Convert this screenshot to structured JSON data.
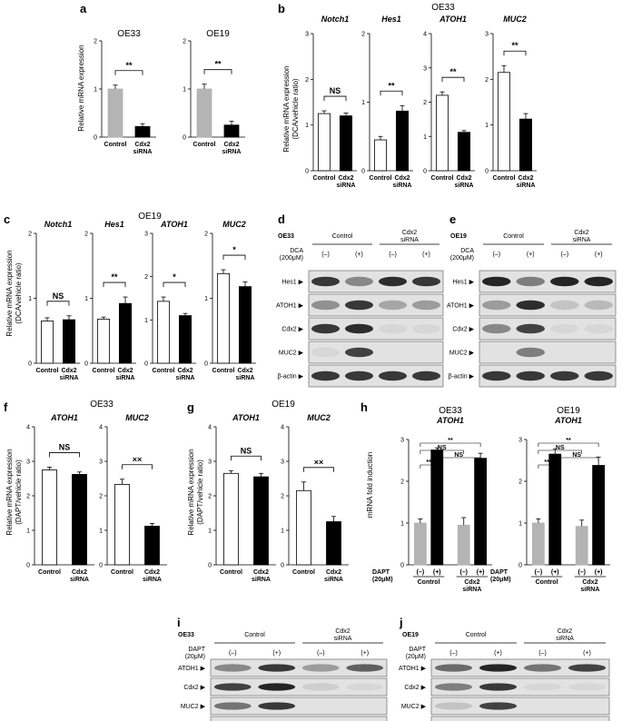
{
  "figure": {
    "panel_letters": [
      "a",
      "b",
      "c",
      "d",
      "e",
      "f",
      "g",
      "h",
      "i",
      "j"
    ],
    "y_labels": {
      "a": [
        "Relative mRNA expression"
      ],
      "b": [
        "Relative mRNA expression",
        "(DCA/vehicle ratio)"
      ],
      "c": [
        "Relative mRNA expression",
        "(DCA/vehicle ratio)"
      ],
      "f": [
        "Relative mRNA expression",
        "(DAPT/vehicle ratio)"
      ],
      "g": [
        "Relative mRNA expression",
        "(DAPT/vehicle ratio)"
      ],
      "h": [
        "mRNA fold induction"
      ]
    },
    "group_titles": {
      "b": "OE33",
      "c": "OE19",
      "f": "OE33",
      "g": "OE19"
    },
    "categories": [
      "Control",
      "Cdx2",
      "siRNA"
    ],
    "dapt_row": {
      "label": [
        "DAPT",
        "(20μM)"
      ],
      "marks": [
        "(–)",
        "(+)",
        "(–)",
        "(+)"
      ],
      "groups": [
        "Control",
        "Cdx2",
        "siRNA"
      ]
    },
    "colors": {
      "control_grey": "#b4b4b4",
      "open": "#ffffff",
      "sirna_black": "#000000",
      "blot_band": "#1a1a1a",
      "blot_bg": "#e2e2e2"
    }
  },
  "chart_data": [
    {
      "id": "a1",
      "panel": "a",
      "type": "bar",
      "title": "OE33",
      "categories": [
        "Control",
        "Cdx2 siRNA"
      ],
      "values": [
        1.0,
        0.22
      ],
      "errors": [
        0.08,
        0.06
      ],
      "ylim": [
        0,
        2
      ],
      "yticks": [
        "0",
        "1",
        "2"
      ],
      "significance": "**",
      "fill": [
        "#b4b4b4",
        "#000000"
      ]
    },
    {
      "id": "a2",
      "panel": "a",
      "type": "bar",
      "title": "OE19",
      "categories": [
        "Control",
        "Cdx2 siRNA"
      ],
      "values": [
        1.0,
        0.25
      ],
      "errors": [
        0.1,
        0.08
      ],
      "ylim": [
        0,
        2
      ],
      "yticks": [
        "0",
        "1",
        "2"
      ],
      "significance": "**",
      "fill": [
        "#b4b4b4",
        "#000000"
      ]
    },
    {
      "id": "b1",
      "panel": "b",
      "type": "bar",
      "title": "Notch1",
      "categories": [
        "Control",
        "Cdx2 siRNA"
      ],
      "values": [
        1.25,
        1.2
      ],
      "errors": [
        0.06,
        0.06
      ],
      "ylim": [
        0,
        3
      ],
      "yticks": [
        "0",
        "1",
        "2",
        "3"
      ],
      "significance": "NS",
      "fill": [
        "#ffffff",
        "#000000"
      ]
    },
    {
      "id": "b2",
      "panel": "b",
      "type": "bar",
      "title": "Hes1",
      "categories": [
        "Control",
        "Cdx2 siRNA"
      ],
      "values": [
        0.45,
        0.87
      ],
      "errors": [
        0.05,
        0.08
      ],
      "ylim": [
        0,
        2
      ],
      "yticks": [
        "0",
        "1",
        "2"
      ],
      "significance": "**",
      "fill": [
        "#ffffff",
        "#000000"
      ]
    },
    {
      "id": "b3",
      "panel": "b",
      "type": "bar",
      "title": "ATOH1",
      "categories": [
        "Control",
        "Cdx2 siRNA"
      ],
      "values": [
        2.2,
        1.12
      ],
      "errors": [
        0.1,
        0.05
      ],
      "ylim": [
        0,
        4
      ],
      "yticks": [
        "0",
        "1",
        "2",
        "3",
        "4"
      ],
      "significance": "**",
      "fill": [
        "#ffffff",
        "#000000"
      ]
    },
    {
      "id": "b4",
      "panel": "b",
      "type": "bar",
      "title": "MUC2",
      "categories": [
        "Control",
        "Cdx2 siRNA"
      ],
      "values": [
        2.15,
        1.13
      ],
      "errors": [
        0.15,
        0.12
      ],
      "ylim": [
        0,
        3
      ],
      "yticks": [
        "0",
        "1",
        "2",
        "3"
      ],
      "significance": "**",
      "fill": [
        "#ffffff",
        "#000000"
      ]
    },
    {
      "id": "c1",
      "panel": "c",
      "type": "bar",
      "title": "Notch1",
      "categories": [
        "Control",
        "Cdx2 siRNA"
      ],
      "values": [
        0.65,
        0.67
      ],
      "errors": [
        0.05,
        0.06
      ],
      "ylim": [
        0,
        2
      ],
      "yticks": [
        "0",
        "1",
        "2"
      ],
      "significance": "NS",
      "fill": [
        "#ffffff",
        "#000000"
      ]
    },
    {
      "id": "c2",
      "panel": "c",
      "type": "bar",
      "title": "Hes1",
      "categories": [
        "Control",
        "Cdx2 siRNA"
      ],
      "values": [
        0.68,
        0.92
      ],
      "errors": [
        0.03,
        0.1
      ],
      "ylim": [
        0,
        2
      ],
      "yticks": [
        "0",
        "1",
        "2"
      ],
      "significance": "**",
      "fill": [
        "#ffffff",
        "#000000"
      ]
    },
    {
      "id": "c3",
      "panel": "c",
      "type": "bar",
      "title": "ATOH1",
      "categories": [
        "Control",
        "Cdx2 siRNA"
      ],
      "values": [
        1.43,
        1.1
      ],
      "errors": [
        0.1,
        0.05
      ],
      "ylim": [
        0,
        3
      ],
      "yticks": [
        "0",
        "1",
        "2",
        "3"
      ],
      "significance": "*",
      "fill": [
        "#ffffff",
        "#000000"
      ]
    },
    {
      "id": "c4",
      "panel": "c",
      "type": "bar",
      "title": "MUC2",
      "categories": [
        "Control",
        "Cdx2 siRNA"
      ],
      "values": [
        1.38,
        1.18
      ],
      "errors": [
        0.06,
        0.07
      ],
      "ylim": [
        0,
        2
      ],
      "yticks": [
        "0",
        "1",
        "2"
      ],
      "significance": "*",
      "fill": [
        "#ffffff",
        "#000000"
      ]
    },
    {
      "id": "f1",
      "panel": "f",
      "type": "bar",
      "title": "ATOH1",
      "categories": [
        "Control",
        "Cdx2 siRNA"
      ],
      "values": [
        2.75,
        2.62
      ],
      "errors": [
        0.08,
        0.07
      ],
      "ylim": [
        0,
        4
      ],
      "yticks": [
        "0",
        "1",
        "2",
        "3",
        "4"
      ],
      "significance": "NS",
      "fill": [
        "#ffffff",
        "#000000"
      ]
    },
    {
      "id": "f2",
      "panel": "f",
      "type": "bar",
      "title": "MUC2",
      "categories": [
        "Control",
        "Cdx2 siRNA"
      ],
      "values": [
        2.33,
        1.12
      ],
      "errors": [
        0.15,
        0.08
      ],
      "ylim": [
        0,
        4
      ],
      "yticks": [
        "0",
        "1",
        "2",
        "3",
        "4"
      ],
      "significance": "××",
      "fill": [
        "#ffffff",
        "#000000"
      ]
    },
    {
      "id": "g1",
      "panel": "g",
      "type": "bar",
      "title": "ATOH1",
      "categories": [
        "Control",
        "Cdx2 siRNA"
      ],
      "values": [
        2.65,
        2.55
      ],
      "errors": [
        0.08,
        0.1
      ],
      "ylim": [
        0,
        4
      ],
      "yticks": [
        "0",
        "1",
        "2",
        "3",
        "4"
      ],
      "significance": "NS",
      "fill": [
        "#ffffff",
        "#000000"
      ]
    },
    {
      "id": "g2",
      "panel": "g",
      "type": "bar",
      "title": "MUC2",
      "categories": [
        "Control",
        "Cdx2 siRNA"
      ],
      "values": [
        2.15,
        1.25
      ],
      "errors": [
        0.25,
        0.15
      ],
      "ylim": [
        0,
        4
      ],
      "yticks": [
        "0",
        "1",
        "2",
        "3",
        "4"
      ],
      "significance": "××",
      "fill": [
        "#ffffff",
        "#000000"
      ]
    },
    {
      "id": "h1",
      "panel": "h",
      "type": "bar",
      "title": "OE33",
      "subtitle": "ATOH1",
      "categories": [
        "Control (–)",
        "Control (+)",
        "Cdx2 siRNA (–)",
        "Cdx2 siRNA (+)"
      ],
      "values": [
        1.0,
        2.75,
        0.95,
        2.55
      ],
      "errors": [
        0.1,
        0.05,
        0.18,
        0.12
      ],
      "ylim": [
        0,
        3
      ],
      "yticks": [
        "0",
        "1",
        "2",
        "3"
      ],
      "significance": [
        "**",
        "NS",
        "NS",
        "**"
      ],
      "fill": [
        "#b4b4b4",
        "#000000",
        "#b4b4b4",
        "#000000"
      ]
    },
    {
      "id": "h2",
      "panel": "h",
      "type": "bar",
      "title": "OE19",
      "subtitle": "ATOH1",
      "categories": [
        "Control (–)",
        "Control (+)",
        "Cdx2 siRNA (–)",
        "Cdx2 siRNA (+)"
      ],
      "values": [
        1.0,
        2.65,
        0.92,
        2.38
      ],
      "errors": [
        0.1,
        0.12,
        0.15,
        0.2
      ],
      "ylim": [
        0,
        3
      ],
      "yticks": [
        "0",
        "1",
        "2",
        "3"
      ],
      "significance": [
        "**",
        "NS",
        "NS",
        "**"
      ],
      "fill": [
        "#b4b4b4",
        "#000000",
        "#b4b4b4",
        "#000000"
      ]
    }
  ],
  "blots": [
    {
      "id": "d",
      "cell": "OE33",
      "treatment": [
        "DCA",
        "(200μM)"
      ],
      "groups": [
        "Control",
        "Cdx2",
        "siRNA"
      ],
      "marks": [
        "(–)",
        "(+)",
        "(–)",
        "(+)"
      ],
      "rows": [
        {
          "label": "Hes1",
          "intensity": [
            0.85,
            0.45,
            0.9,
            0.85
          ]
        },
        {
          "label": "ATOH1",
          "intensity": [
            0.4,
            0.85,
            0.3,
            0.35
          ]
        },
        {
          "label": "Cdx2",
          "intensity": [
            0.85,
            0.9,
            0.05,
            0.05
          ]
        },
        {
          "label": "MUC2",
          "intensity": [
            0.05,
            0.8,
            0.03,
            0.03
          ]
        },
        {
          "label": "β-actin",
          "intensity": [
            0.85,
            0.85,
            0.85,
            0.85
          ]
        }
      ]
    },
    {
      "id": "e",
      "cell": "OE19",
      "treatment": [
        "DCA",
        "(200μM)"
      ],
      "groups": [
        "Control",
        "Cdx2",
        "siRNA"
      ],
      "marks": [
        "(–)",
        "(+)",
        "(–)",
        "(+)"
      ],
      "rows": [
        {
          "label": "Hes1",
          "intensity": [
            0.95,
            0.5,
            0.95,
            0.95
          ]
        },
        {
          "label": "ATOH1",
          "intensity": [
            0.35,
            0.9,
            0.15,
            0.2
          ]
        },
        {
          "label": "Cdx2",
          "intensity": [
            0.45,
            0.8,
            0.05,
            0.05
          ]
        },
        {
          "label": "MUC2",
          "intensity": [
            0.03,
            0.5,
            0.03,
            0.03
          ]
        },
        {
          "label": "β-actin",
          "intensity": [
            0.85,
            0.85,
            0.85,
            0.85
          ]
        }
      ]
    },
    {
      "id": "i",
      "cell": "OE33",
      "treatment": [
        "DAPT",
        "(20μM)"
      ],
      "groups": [
        "Control",
        "Cdx2",
        "siRNA"
      ],
      "marks": [
        "(–)",
        "(+)",
        "(–)",
        "(+)"
      ],
      "rows": [
        {
          "label": "ATOH1",
          "intensity": [
            0.45,
            0.85,
            0.35,
            0.65
          ]
        },
        {
          "label": "Cdx2",
          "intensity": [
            0.8,
            0.95,
            0.1,
            0.05
          ]
        },
        {
          "label": "MUC2",
          "intensity": [
            0.55,
            0.85,
            0.03,
            0.03
          ]
        },
        {
          "label": "β-actin",
          "intensity": [
            0.85,
            0.85,
            0.85,
            0.85
          ]
        }
      ]
    },
    {
      "id": "j",
      "cell": "OE19",
      "treatment": [
        "DAPT",
        "(20μM)"
      ],
      "groups": [
        "Control",
        "Cdx2",
        "siRNA"
      ],
      "marks": [
        "(–)",
        "(+)",
        "(–)",
        "(+)"
      ],
      "rows": [
        {
          "label": "ATOH1",
          "intensity": [
            0.6,
            0.95,
            0.55,
            0.8
          ]
        },
        {
          "label": "Cdx2",
          "intensity": [
            0.5,
            0.85,
            0.05,
            0.05
          ]
        },
        {
          "label": "MUC2",
          "intensity": [
            0.15,
            0.8,
            0.03,
            0.03
          ]
        },
        {
          "label": "β-actin",
          "intensity": [
            0.85,
            0.85,
            0.85,
            0.85
          ]
        }
      ]
    }
  ]
}
